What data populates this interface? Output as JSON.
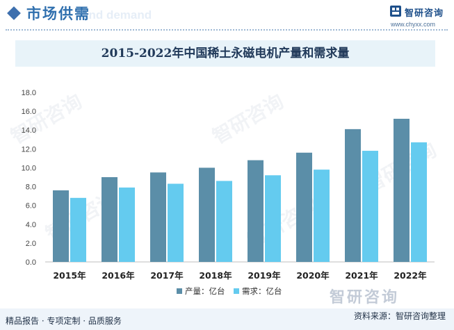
{
  "header": {
    "title": "市场供需",
    "bg_text": "and demand"
  },
  "logo": {
    "name": "智研咨询",
    "url": "www.chyxx.com"
  },
  "watermark": "智研咨询",
  "colors": {
    "production": "#5b8ea8",
    "demand": "#64cbef",
    "accent": "#3d6fae"
  },
  "chart_data": {
    "type": "bar",
    "title": "2015-2022年中国稀土永磁电机产量和需求量",
    "categories": [
      "2015年",
      "2016年",
      "2017年",
      "2018年",
      "2019年",
      "2020年",
      "2021年",
      "2022年"
    ],
    "series": [
      {
        "name": "产量：亿台",
        "values": [
          7.6,
          9.0,
          9.5,
          10.0,
          10.8,
          11.6,
          14.1,
          15.2
        ]
      },
      {
        "name": "需求：亿台",
        "values": [
          6.8,
          7.9,
          8.3,
          8.6,
          9.2,
          9.8,
          11.8,
          12.7
        ]
      }
    ],
    "yticks": [
      "0.0",
      "2.0",
      "4.0",
      "6.0",
      "8.0",
      "10.0",
      "12.0",
      "14.0",
      "16.0",
      "18.0"
    ],
    "ylim": [
      0,
      18
    ],
    "grid": false,
    "legend": "bottom"
  },
  "footer": {
    "left": "精品报告 · 专项定制 · 品质服务",
    "right": "资料来源：智研咨询整理"
  }
}
